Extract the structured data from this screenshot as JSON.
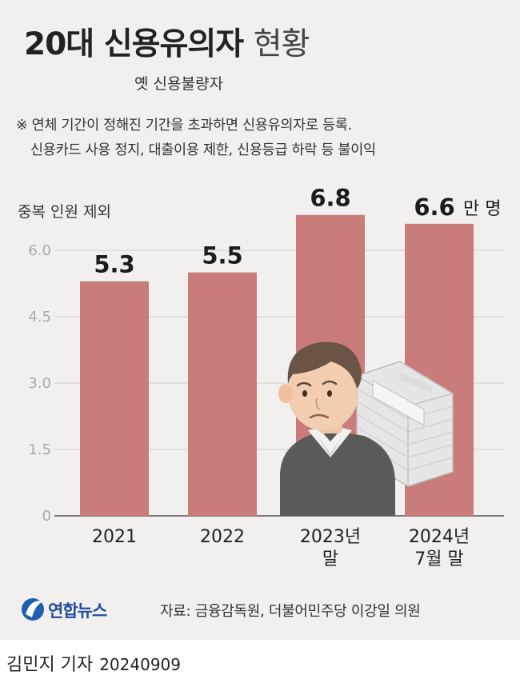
{
  "header": {
    "title_main": "20대 신용유의자",
    "title_light": "현황",
    "subtitle": "옛 신용불량자",
    "note_line1": "※ 연체 기간이 정해진 기간을 초과하면 신용유의자로 등록.",
    "note_line2": "신용카드 사용 정지, 대출이용 제한, 신용등급 하락 등 불이익"
  },
  "chart_data": {
    "type": "bar",
    "ylabel": "중복 인원 제외",
    "categories": [
      "2021",
      "2022",
      "2023년\n말",
      "2024년\n7월 말"
    ],
    "values": [
      5.3,
      5.5,
      6.8,
      6.6
    ],
    "data_labels": [
      "5.3",
      "5.5",
      "6.8",
      "6.6"
    ],
    "unit": "만 명",
    "yticks": [
      "0",
      "1.5",
      "3.0",
      "4.5",
      "6.0"
    ],
    "ytick_values": [
      0,
      1.5,
      3.0,
      4.5,
      6.0
    ],
    "ylim": [
      0,
      7.0
    ],
    "grid": true,
    "bar_color": "#c97c7a",
    "grid_color": "#cfcfcf"
  },
  "footer": {
    "logo_text": "연합뉴스",
    "source": "자료: 금융감독원, 더불어민주당 이강일 의원",
    "reporter": "김민지 기자",
    "date": "20240909"
  }
}
